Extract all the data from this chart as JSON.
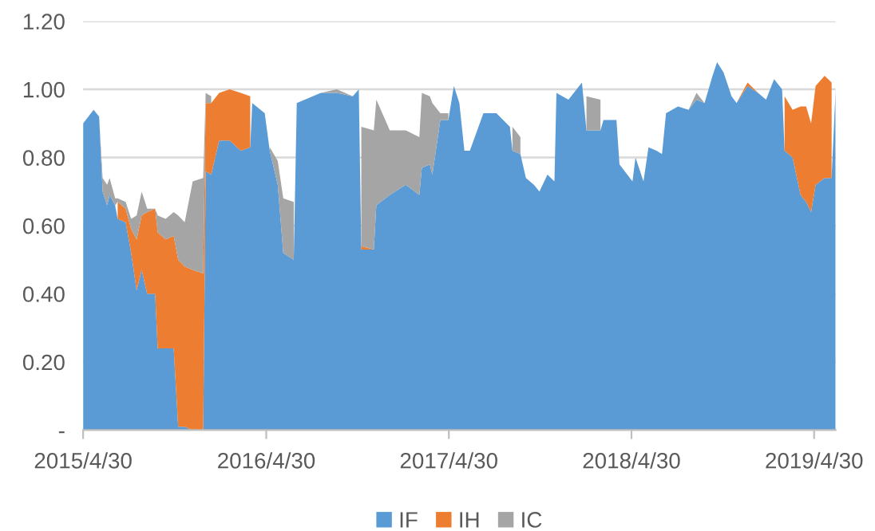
{
  "chart_data": {
    "type": "area",
    "stacked": true,
    "legend": "bottom",
    "grid": "y",
    "x": [
      "2015-04-30",
      "2015-05-21",
      "2015-06-01",
      "2015-06-08",
      "2015-06-17",
      "2015-06-22",
      "2015-07-03",
      "2015-07-08",
      "2015-07-24",
      "2015-08-04",
      "2015-08-15",
      "2015-08-25",
      "2015-09-05",
      "2015-09-21",
      "2015-09-26",
      "2015-10-12",
      "2015-10-28",
      "2015-11-06",
      "2015-11-19",
      "2015-12-05",
      "2015-12-26",
      "2015-12-31",
      "2016-01-11",
      "2016-01-27",
      "2016-02-17",
      "2016-03-10",
      "2016-03-29",
      "2016-04-02",
      "2016-04-27",
      "2016-05-07",
      "2016-05-23",
      "2016-06-03",
      "2016-06-24",
      "2016-06-30",
      "2016-07-16",
      "2016-08-17",
      "2016-09-18",
      "2016-10-20",
      "2016-11-01",
      "2016-11-06",
      "2016-12-01",
      "2016-12-06",
      "2017-01-02",
      "2017-02-03",
      "2017-03-02",
      "2017-03-07",
      "2017-03-23",
      "2017-03-28",
      "2017-04-13",
      "2017-04-29",
      "2017-05-10",
      "2017-05-21",
      "2017-05-31",
      "2017-06-11",
      "2017-07-08",
      "2017-08-03",
      "2017-08-30",
      "2017-09-04",
      "2017-09-20",
      "2017-10-01",
      "2017-10-17",
      "2017-10-28",
      "2017-11-13",
      "2017-11-27",
      "2017-12-01",
      "2017-12-25",
      "2018-01-21",
      "2018-01-30",
      "2018-02-27",
      "2018-03-05",
      "2018-03-31",
      "2018-04-06",
      "2018-05-02",
      "2018-05-08",
      "2018-05-24",
      "2018-06-03",
      "2018-06-19",
      "2018-06-30",
      "2018-07-08",
      "2018-08-01",
      "2018-08-22",
      "2018-09-07",
      "2018-09-23",
      "2018-10-09",
      "2018-10-18",
      "2018-10-31",
      "2018-11-16",
      "2018-11-26",
      "2018-12-18",
      "2019-01-08",
      "2019-01-24",
      "2019-02-09",
      "2019-02-25",
      "2019-03-02",
      "2019-03-18",
      "2019-04-03",
      "2019-04-14",
      "2019-04-24",
      "2019-05-03",
      "2019-05-21",
      "2019-06-04",
      "2019-06-12"
    ],
    "series": [
      {
        "name": "IF",
        "color": "#5b9bd5",
        "values": [
          0.9,
          0.94,
          0.92,
          0.7,
          0.66,
          0.69,
          0.66,
          0.62,
          0.61,
          0.52,
          0.41,
          0.47,
          0.4,
          0.4,
          0.24,
          0.24,
          0.24,
          0.01,
          0.01,
          0,
          0,
          0.76,
          0.75,
          0.85,
          0.85,
          0.82,
          0.83,
          0.96,
          0.93,
          0.82,
          0.72,
          0.52,
          0.5,
          0.96,
          0.97,
          0.99,
          0.99,
          0.98,
          1.0,
          0.53,
          0.53,
          0.66,
          0.69,
          0.72,
          0.69,
          0.77,
          0.78,
          0.75,
          0.91,
          0.91,
          1.01,
          0.96,
          0.82,
          0.82,
          0.93,
          0.93,
          0.89,
          0.82,
          0.81,
          0.74,
          0.72,
          0.7,
          0.75,
          0.73,
          0.99,
          0.97,
          1.02,
          0.88,
          0.88,
          0.91,
          0.91,
          0.78,
          0.73,
          0.8,
          0.73,
          0.83,
          0.82,
          0.81,
          0.93,
          0.95,
          0.94,
          0.97,
          0.96,
          1.04,
          1.08,
          1.05,
          0.98,
          0.96,
          1.01,
          0.99,
          0.97,
          1.03,
          1.0,
          0.82,
          0.8,
          0.69,
          0.67,
          0.64,
          0.72,
          0.74,
          0.74,
          1.0
        ]
      },
      {
        "name": "IH",
        "color": "#ed7d31",
        "values": [
          null,
          null,
          null,
          null,
          null,
          null,
          null,
          0.05,
          0.04,
          0.07,
          0.15,
          0.16,
          0.24,
          0.25,
          0.34,
          0.32,
          0.33,
          0.49,
          0.47,
          0.47,
          0.46,
          0.2,
          0.21,
          0.14,
          0.15,
          0.17,
          0.15,
          null,
          null,
          null,
          null,
          null,
          null,
          null,
          null,
          null,
          null,
          null,
          0,
          0.01,
          0,
          null,
          null,
          null,
          null,
          null,
          null,
          null,
          null,
          null,
          null,
          null,
          null,
          null,
          null,
          null,
          null,
          null,
          null,
          null,
          null,
          null,
          null,
          null,
          null,
          null,
          null,
          null,
          null,
          null,
          null,
          null,
          null,
          null,
          null,
          null,
          null,
          null,
          null,
          null,
          null,
          null,
          null,
          null,
          null,
          null,
          null,
          0,
          0.01,
          0,
          null,
          null,
          null,
          0.16,
          0.14,
          0.26,
          0.28,
          0.26,
          0.29,
          0.3,
          0.28,
          null
        ]
      },
      {
        "name": "IC",
        "color": "#a5a5a5",
        "values": [
          null,
          null,
          0,
          0.04,
          0.06,
          0.05,
          0.02,
          0.01,
          0.02,
          0.03,
          0.07,
          0.07,
          0.01,
          0,
          0.05,
          0.06,
          0.07,
          0.13,
          0.13,
          0.26,
          0.28,
          0.03,
          0.02,
          null,
          null,
          null,
          null,
          null,
          null,
          0.01,
          0.07,
          0.16,
          0.17,
          null,
          null,
          0,
          0.01,
          0,
          null,
          0.35,
          0.35,
          0.31,
          0.19,
          0.16,
          0.17,
          0.22,
          0.2,
          0.21,
          0.02,
          0.02,
          null,
          null,
          null,
          null,
          null,
          null,
          null,
          0.07,
          0.05,
          null,
          null,
          null,
          null,
          null,
          null,
          null,
          null,
          0.1,
          0.09,
          null,
          null,
          null,
          null,
          null,
          null,
          null,
          null,
          null,
          null,
          null,
          0,
          0.02,
          0,
          null,
          null,
          null,
          null,
          null,
          null,
          null,
          null,
          null,
          null,
          null,
          null,
          null,
          null,
          null,
          null,
          null,
          null,
          null
        ]
      }
    ],
    "xlim": [
      "2015-04-30",
      "2019-06-12"
    ],
    "xticks": [
      {
        "value": "2015-04-30",
        "label": "2015/4/30"
      },
      {
        "value": "2016-04-30",
        "label": "2016/4/30"
      },
      {
        "value": "2017-04-30",
        "label": "2017/4/30"
      },
      {
        "value": "2018-04-30",
        "label": "2018/4/30"
      },
      {
        "value": "2019-04-30",
        "label": "2019/4/30"
      }
    ],
    "ylim": [
      0,
      1.2
    ],
    "yticks": [
      {
        "value": 0,
        "label": "-"
      },
      {
        "value": 0.2,
        "label": "0.20"
      },
      {
        "value": 0.4,
        "label": "0.40"
      },
      {
        "value": 0.6,
        "label": "0.60"
      },
      {
        "value": 0.8,
        "label": "0.80"
      },
      {
        "value": 1.0,
        "label": "1.00"
      },
      {
        "value": 1.2,
        "label": "1.20"
      }
    ]
  }
}
